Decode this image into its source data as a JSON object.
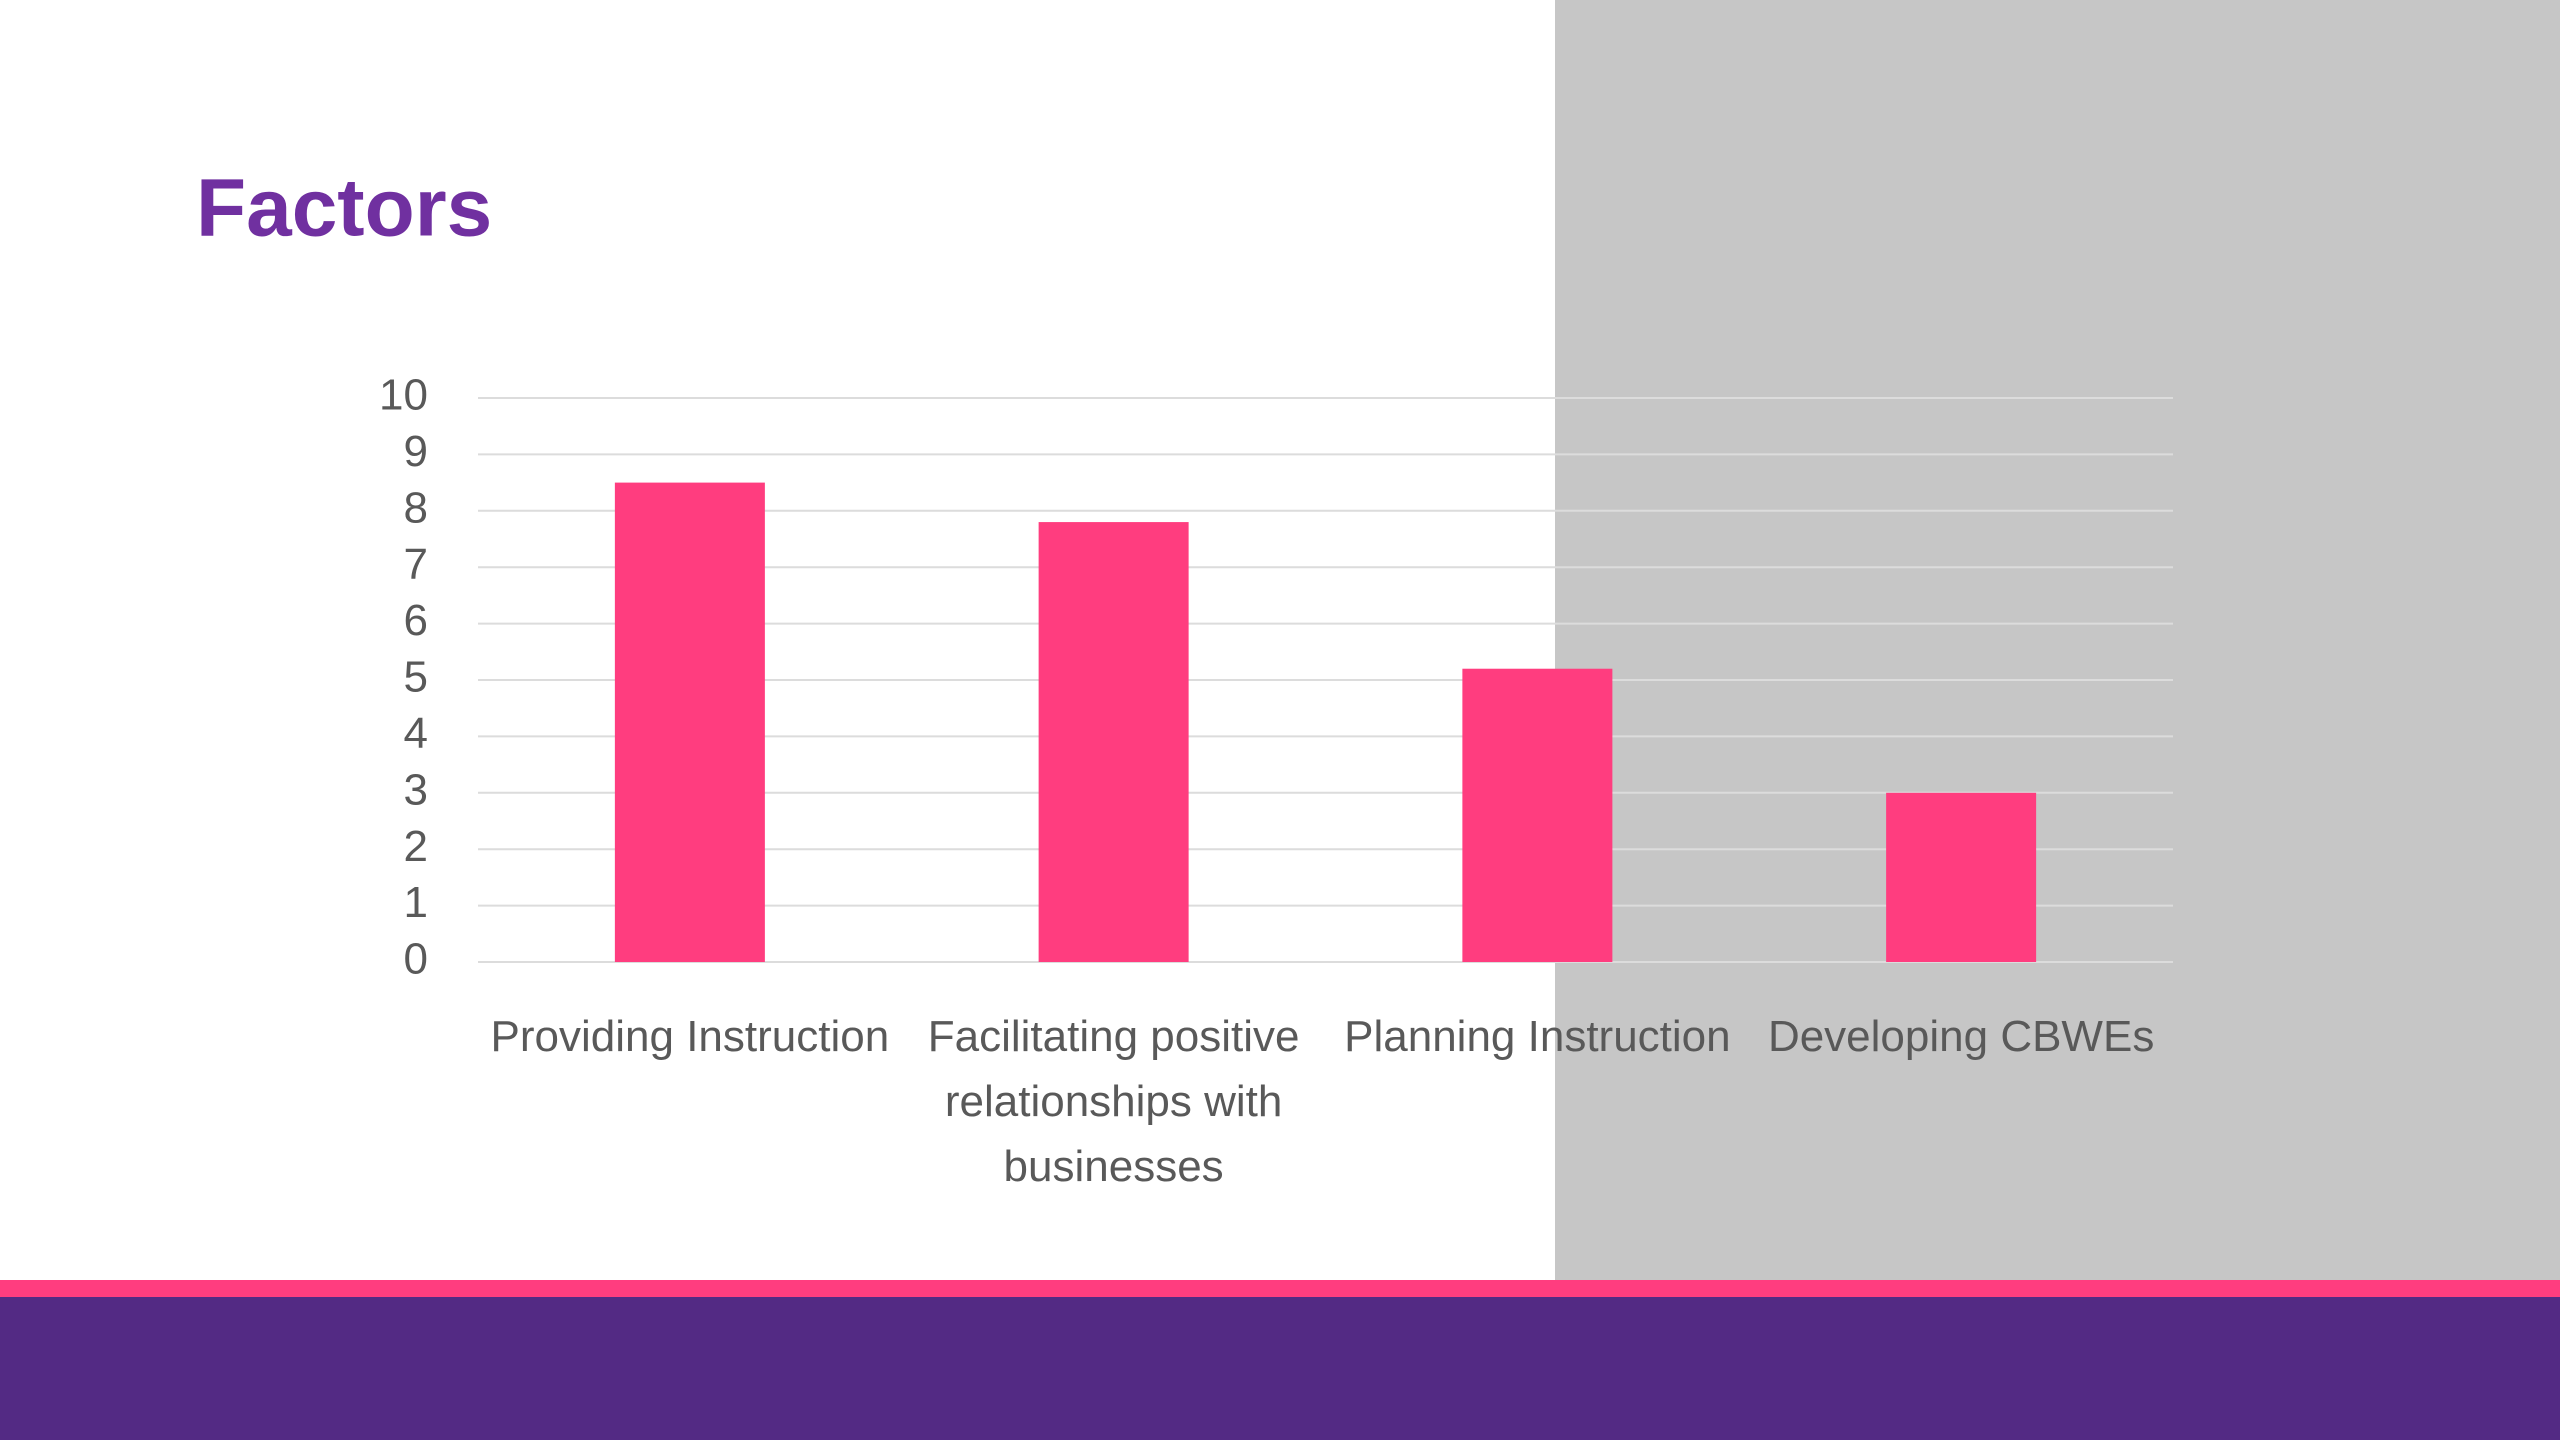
{
  "chart_data": {
    "type": "bar",
    "title": "Factors",
    "categories": [
      "Providing Instruction",
      "Facilitating positive relationships with businesses",
      "Planning Instruction",
      "Developing CBWEs"
    ],
    "values": [
      8.5,
      7.8,
      5.2,
      3.0
    ],
    "color": "#ff3d7f",
    "ylim": [
      0,
      10
    ],
    "yticks": [
      0,
      1,
      2,
      3,
      4,
      5,
      6,
      7,
      8,
      9,
      10
    ],
    "grid": true
  }
}
